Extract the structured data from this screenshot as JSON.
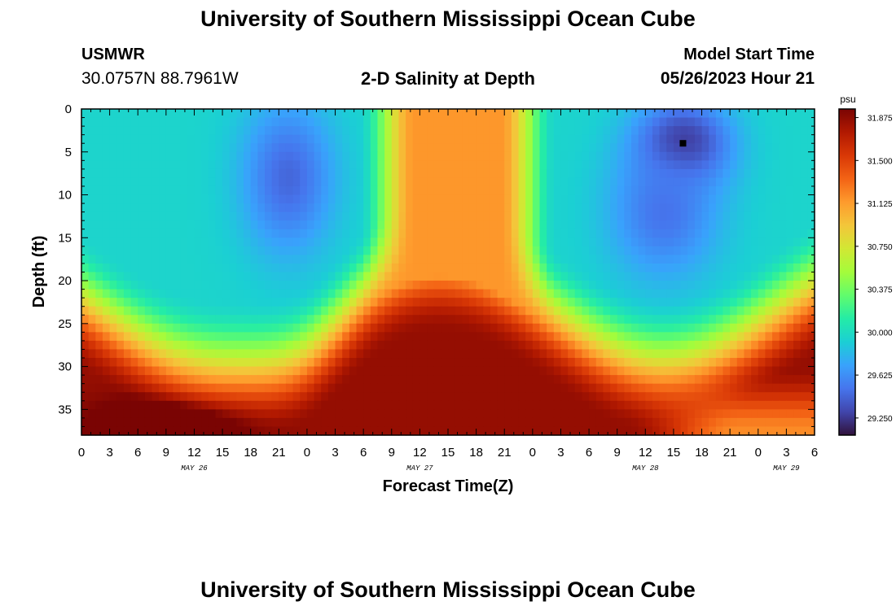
{
  "header": {
    "title": "University of Southern Mississippi Ocean Cube",
    "station": "USMWR",
    "coordinates": "30.0757N  88.7961W",
    "subtitle": "2-D Salinity at Depth",
    "model_start_label": "Model Start Time",
    "model_start_value": "05/26/2023 Hour 21",
    "footer_title": "University of Southern Mississippi Ocean Cube"
  },
  "chart_data": {
    "type": "heatmap",
    "title": "2-D Salinity at Depth",
    "xlabel": "Forecast Time(Z)",
    "ylabel": "Depth (ft)",
    "x_ticks": [
      "0",
      "3",
      "6",
      "9",
      "12",
      "15",
      "18",
      "21",
      "0",
      "3",
      "6",
      "9",
      "12",
      "15",
      "18",
      "21",
      "0",
      "3",
      "6",
      "9",
      "12",
      "15",
      "18",
      "21",
      "0",
      "3",
      "6"
    ],
    "x_range_hours": [
      0,
      78
    ],
    "x_minor_step_hours": 1,
    "date_labels": [
      {
        "text": "MAY 26",
        "hour": 12
      },
      {
        "text": "MAY 27",
        "hour": 36
      },
      {
        "text": "MAY 28",
        "hour": 60
      },
      {
        "text": "MAY 29",
        "hour": 75
      }
    ],
    "y_ticks": [
      0,
      5,
      10,
      15,
      20,
      25,
      30,
      35
    ],
    "y_range_ft": [
      0,
      38
    ],
    "y_minor_step_ft": 1,
    "colorbar": {
      "unit": "psu",
      "range": [
        29.1,
        31.95
      ],
      "ticks": [
        "31.875",
        "31.500",
        "31.125",
        "30.750",
        "30.375",
        "30.000",
        "29.625",
        "29.250"
      ],
      "colors": [
        "#30123b",
        "#4145ab",
        "#4675ed",
        "#39a2fc",
        "#1bcfd4",
        "#24eca6",
        "#61fc6c",
        "#a4fc3b",
        "#d1e834",
        "#f3c63a",
        "#fe9b2d",
        "#f36315",
        "#d93806",
        "#b11901",
        "#7a0403"
      ]
    },
    "field_description": "Salinity (psu) vs forecast hour (x, 0-78) and depth in ft (y, 0-38)",
    "low_anomalies": [
      {
        "hour": 22,
        "depth_ft": 8,
        "psu": 29.45,
        "hour_spread": 5,
        "depth_spread": 9
      },
      {
        "hour": 64,
        "depth_ft": 4,
        "psu": 29.2,
        "hour_spread": 5,
        "depth_spread": 5
      },
      {
        "hour": 62,
        "depth_ft": 12,
        "psu": 29.5,
        "hour_spread": 6,
        "depth_spread": 8
      },
      {
        "hour": 4,
        "depth_ft": 8,
        "psu": 29.95,
        "hour_spread": 6,
        "depth_spread": 8
      }
    ],
    "high_core": {
      "hour_center": 40,
      "hour_halfwidth": 6.5,
      "psu": 31.15
    },
    "bottom_peak": {
      "hour": 9,
      "depth_ft": 37,
      "psu": 31.9
    }
  }
}
